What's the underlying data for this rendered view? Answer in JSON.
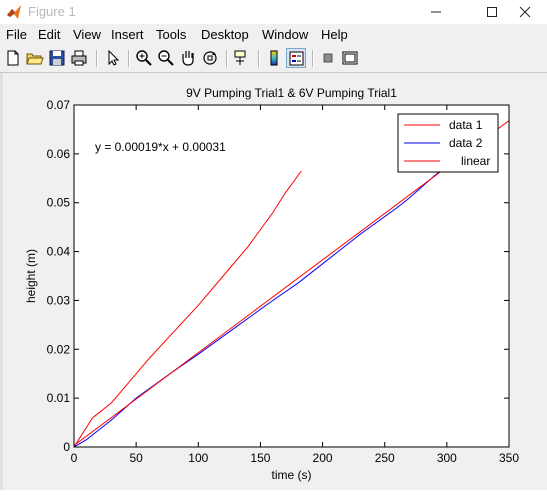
{
  "window": {
    "title": "Figure 1",
    "minimize_icon": "minimize-icon",
    "maximize_icon": "maximize-icon",
    "close_icon": "close-icon"
  },
  "menu": [
    "File",
    "Edit",
    "View",
    "Insert",
    "Tools",
    "Desktop",
    "Window",
    "Help"
  ],
  "toolbar": {
    "icons": [
      "new-figure-icon",
      "open-file-icon",
      "save-figure-icon",
      "print-figure-icon",
      "edit-plot-arrow-icon",
      "zoom-in-icon",
      "zoom-out-icon",
      "pan-hand-icon",
      "rotate-3d-icon",
      "data-cursor-icon",
      "insert-colorbar-icon",
      "insert-legend-icon",
      "hide-plot-tools-icon",
      "show-plot-tools-icon"
    ]
  },
  "chart_data": {
    "type": "line",
    "title": "9V Pumping Trial1 & 6V Pumping Trial1",
    "xlabel": "time (s)",
    "ylabel": "height (m)",
    "xlim": [
      0,
      350
    ],
    "ylim": [
      0,
      0.07
    ],
    "xticks": [
      "0",
      "50",
      "100",
      "150",
      "200",
      "250",
      "300",
      "350"
    ],
    "yticks": [
      "0",
      "0.01",
      "0.02",
      "0.03",
      "0.04",
      "0.05",
      "0.06",
      "0.07"
    ],
    "annotation": "y = 0.00019*x + 0.00031",
    "legend_position": "top-right",
    "grid": false,
    "series": [
      {
        "name": "data 1",
        "color": "#ff0000",
        "x": [
          0,
          5,
          10,
          15,
          20,
          30,
          40,
          60,
          80,
          100,
          120,
          140,
          160,
          170,
          183
        ],
        "y": [
          0,
          0.002,
          0.004,
          0.006,
          0.007,
          0.009,
          0.012,
          0.018,
          0.0235,
          0.029,
          0.035,
          0.041,
          0.048,
          0.052,
          0.0565
        ]
      },
      {
        "name": "data 2",
        "color": "#0000ff",
        "x": [
          0,
          10,
          20,
          30,
          50,
          80,
          100,
          130,
          160,
          180,
          200,
          230,
          260,
          270,
          290,
          310,
          330,
          340
        ],
        "y": [
          0,
          0.0015,
          0.0035,
          0.0055,
          0.01,
          0.0155,
          0.019,
          0.0245,
          0.03,
          0.0335,
          0.0375,
          0.0435,
          0.049,
          0.051,
          0.0555,
          0.0595,
          0.0625,
          0.0645
        ]
      },
      {
        "name": "linear",
        "color": "#ff0000",
        "x": [
          0,
          350
        ],
        "y": [
          0.00031,
          0.06681
        ]
      }
    ]
  }
}
